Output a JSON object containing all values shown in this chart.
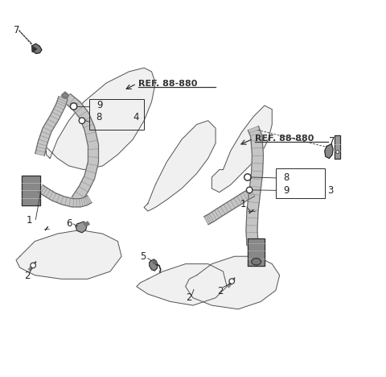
{
  "bg_color": "#ffffff",
  "line_color": "#2a2a2a",
  "belt_fill": "#c8c8c8",
  "belt_edge": "#555555",
  "seat_fill": "#f0f0f0",
  "seat_edge": "#555555",
  "ref_text_1": "REF. 88-880",
  "ref_text_2": "REF. 88-880",
  "font_size_label": 8.5,
  "font_size_ref": 8.0,
  "left_seat_back": {
    "x": [
      0.12,
      0.14,
      0.17,
      0.21,
      0.27,
      0.33,
      0.37,
      0.39,
      0.4,
      0.39,
      0.37,
      0.34,
      0.3,
      0.26,
      0.21,
      0.17,
      0.14,
      0.12,
      0.11,
      0.11,
      0.12
    ],
    "y": [
      0.58,
      0.63,
      0.68,
      0.73,
      0.78,
      0.81,
      0.82,
      0.81,
      0.78,
      0.73,
      0.68,
      0.63,
      0.59,
      0.56,
      0.55,
      0.56,
      0.58,
      0.6,
      0.61,
      0.59,
      0.58
    ]
  },
  "left_seat_cushion": {
    "x": [
      0.04,
      0.08,
      0.14,
      0.2,
      0.26,
      0.3,
      0.31,
      0.28,
      0.22,
      0.15,
      0.08,
      0.04,
      0.03,
      0.04
    ],
    "y": [
      0.32,
      0.36,
      0.38,
      0.39,
      0.38,
      0.36,
      0.32,
      0.28,
      0.26,
      0.26,
      0.27,
      0.29,
      0.31,
      0.32
    ]
  },
  "right_seat_back": {
    "x": [
      0.58,
      0.6,
      0.63,
      0.66,
      0.69,
      0.71,
      0.71,
      0.7,
      0.68,
      0.64,
      0.6,
      0.57,
      0.55,
      0.55,
      0.57,
      0.58
    ],
    "y": [
      0.55,
      0.6,
      0.65,
      0.69,
      0.72,
      0.71,
      0.67,
      0.63,
      0.59,
      0.55,
      0.51,
      0.49,
      0.5,
      0.53,
      0.55,
      0.55
    ]
  },
  "right_seat_cushion": {
    "x": [
      0.51,
      0.55,
      0.61,
      0.67,
      0.71,
      0.73,
      0.72,
      0.68,
      0.62,
      0.55,
      0.5,
      0.48,
      0.49,
      0.51
    ],
    "y": [
      0.27,
      0.3,
      0.32,
      0.32,
      0.3,
      0.27,
      0.23,
      0.2,
      0.18,
      0.19,
      0.21,
      0.24,
      0.26,
      0.27
    ]
  },
  "center_seat_back": {
    "x": [
      0.38,
      0.4,
      0.43,
      0.47,
      0.51,
      0.54,
      0.56,
      0.56,
      0.54,
      0.51,
      0.47,
      0.43,
      0.4,
      0.38,
      0.37,
      0.38
    ],
    "y": [
      0.46,
      0.51,
      0.57,
      0.63,
      0.67,
      0.68,
      0.66,
      0.62,
      0.58,
      0.54,
      0.5,
      0.47,
      0.45,
      0.44,
      0.45,
      0.46
    ]
  },
  "center_seat_cushion": {
    "x": [
      0.38,
      0.42,
      0.48,
      0.54,
      0.58,
      0.59,
      0.56,
      0.5,
      0.44,
      0.38,
      0.35,
      0.36,
      0.38
    ],
    "y": [
      0.26,
      0.28,
      0.3,
      0.3,
      0.28,
      0.24,
      0.21,
      0.19,
      0.2,
      0.22,
      0.24,
      0.25,
      0.26
    ]
  }
}
